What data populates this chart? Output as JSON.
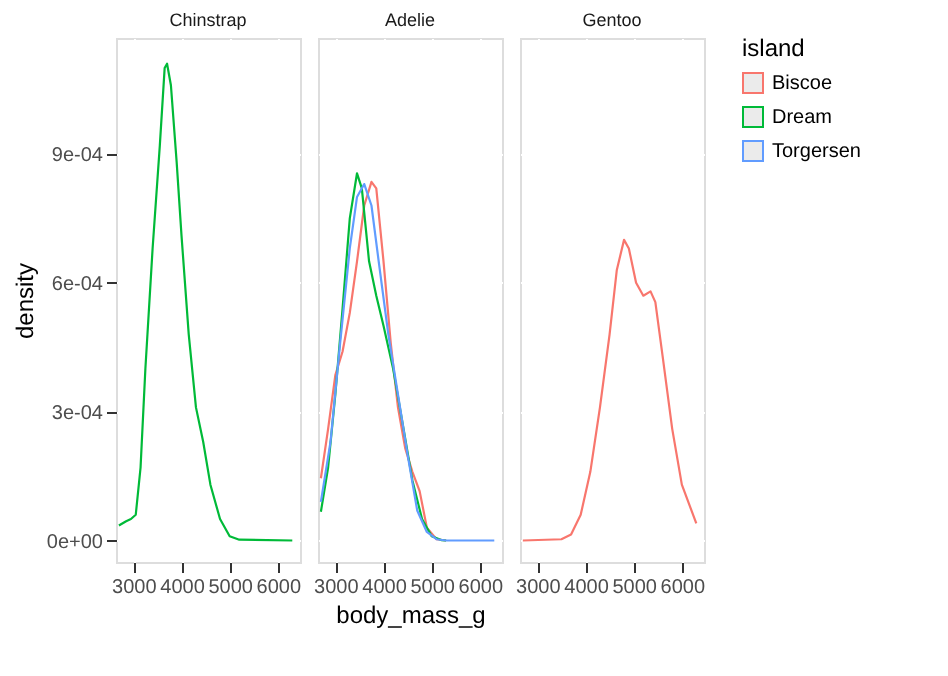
{
  "chart_data": [
    {
      "type": "line",
      "title": "Chinstrap",
      "ylabel": "density",
      "xlim": [
        2640,
        6460
      ],
      "xticks": [
        3000,
        4000,
        5000,
        6000
      ],
      "ylim": [
        -5e-05,
        0.00117
      ],
      "yticks": [
        {
          "value": 0,
          "label": "0e+00"
        },
        {
          "value": 0.0003,
          "label": "3e-04"
        },
        {
          "value": 0.0006,
          "label": "6e-04"
        },
        {
          "value": 0.0009,
          "label": "9e-04"
        }
      ],
      "grid": true,
      "series": [
        {
          "name": "Dream",
          "color": "#00ba38",
          "x": [
            2700,
            2850,
            2950,
            3050,
            3150,
            3250,
            3400,
            3550,
            3650,
            3700,
            3780,
            3900,
            4000,
            4150,
            4300,
            4450,
            4600,
            4800,
            5000,
            5200,
            6300
          ],
          "values": [
            3.5e-05,
            4.5e-05,
            5e-05,
            6e-05,
            0.00017,
            0.0004,
            0.00068,
            0.00092,
            0.0011,
            0.00111,
            0.00106,
            0.00088,
            0.00071,
            0.00048,
            0.00031,
            0.00023,
            0.00013,
            5e-05,
            1e-05,
            2e-06,
            0
          ]
        }
      ]
    },
    {
      "type": "line",
      "title": "Adelie",
      "xlabel": "body_mass_g",
      "legend_title": "island",
      "legend": "right",
      "tick_labels": "x",
      "xlim": [
        2640,
        6460
      ],
      "xticks": [
        3000,
        4000,
        5000,
        6000
      ],
      "ylim": [
        -5e-05,
        0.00117
      ],
      "yticks": [
        0,
        0.0003,
        0.0006,
        0.0009
      ],
      "grid": true,
      "series": [
        {
          "name": "Biscoe",
          "color": "#f8766d",
          "x": [
            2700,
            2850,
            3000,
            3150,
            3300,
            3450,
            3600,
            3750,
            3850,
            4000,
            4150,
            4300,
            4450,
            4600,
            4750,
            4900,
            5100,
            5300
          ],
          "values": [
            0.000145,
            0.00026,
            0.000385,
            0.00044,
            0.00053,
            0.00065,
            0.00078,
            0.000835,
            0.00082,
            0.00065,
            0.00046,
            0.00031,
            0.000215,
            0.00016,
            0.000115,
            3e-05,
            3e-06,
            0
          ]
        },
        {
          "name": "Dream",
          "color": "#00ba38",
          "x": [
            2700,
            2850,
            3000,
            3150,
            3300,
            3450,
            3550,
            3700,
            3850,
            4000,
            4200,
            4400,
            4600,
            4800,
            5000,
            5200,
            5300
          ],
          "values": [
            6.7e-05,
            0.00017,
            0.00034,
            0.00054,
            0.00075,
            0.000855,
            0.00082,
            0.00065,
            0.00057,
            0.0005,
            0.0004,
            0.00027,
            0.00014,
            5e-05,
            1e-05,
            1e-06,
            0
          ]
        },
        {
          "name": "Torgersen",
          "color": "#619cff",
          "x": [
            2700,
            2900,
            3100,
            3300,
            3450,
            3600,
            3750,
            3900,
            4100,
            4300,
            4500,
            4700,
            4900,
            5100,
            5300,
            6300
          ],
          "values": [
            9e-05,
            0.00023,
            0.00046,
            0.00068,
            0.0008,
            0.00083,
            0.00078,
            0.00065,
            0.00048,
            0.00034,
            0.0002,
            7e-05,
            2e-05,
            3e-06,
            0,
            0
          ]
        }
      ]
    },
    {
      "type": "line",
      "title": "Gentoo",
      "tick_labels": "x",
      "xlim": [
        2640,
        6460
      ],
      "xticks": [
        3000,
        4000,
        5000,
        6000
      ],
      "ylim": [
        -5e-05,
        0.00117
      ],
      "yticks": [
        0,
        0.0003,
        0.0006,
        0.0009
      ],
      "grid": true,
      "series": [
        {
          "name": "Biscoe",
          "color": "#f8766d",
          "x": [
            2700,
            3500,
            3700,
            3900,
            4100,
            4300,
            4500,
            4650,
            4800,
            4900,
            5050,
            5200,
            5350,
            5450,
            5600,
            5800,
            6000,
            6300
          ],
          "values": [
            0,
            3e-06,
            1.4e-05,
            6e-05,
            0.00016,
            0.00031,
            0.00048,
            0.00063,
            0.0007,
            0.00068,
            0.0006,
            0.00057,
            0.00058,
            0.000555,
            0.00043,
            0.00026,
            0.00013,
            4e-05
          ]
        }
      ]
    }
  ]
}
